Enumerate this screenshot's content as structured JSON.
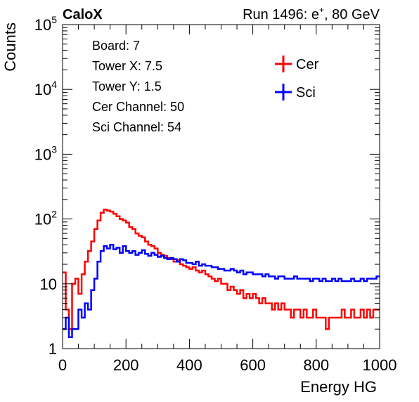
{
  "chart_data": {
    "type": "histogram",
    "corner_label": "CaloX",
    "run_label": "Run 1496: e",
    "run_label_sup": "+",
    "run_label_rest": ", 80 GeV",
    "xlabel": "Energy HG",
    "ylabel": "Counts",
    "xlim": [
      0,
      1000
    ],
    "ylim": [
      1,
      100000
    ],
    "y_scale": "log",
    "x_ticks": [
      {
        "value": 0,
        "label": "0"
      },
      {
        "value": 200,
        "label": "200"
      },
      {
        "value": 400,
        "label": "400"
      },
      {
        "value": 600,
        "label": "600"
      },
      {
        "value": 800,
        "label": "800"
      },
      {
        "value": 1000,
        "label": "1000"
      }
    ],
    "y_ticks": [
      {
        "value": 1,
        "base": "1",
        "exp": ""
      },
      {
        "value": 10,
        "base": "10",
        "exp": ""
      },
      {
        "value": 100,
        "base": "10",
        "exp": "2"
      },
      {
        "value": 1000,
        "base": "10",
        "exp": "3"
      },
      {
        "value": 10000,
        "base": "10",
        "exp": "4"
      },
      {
        "value": 100000,
        "base": "10",
        "exp": "5"
      }
    ],
    "info_lines": [
      "Board: 7",
      "Tower X: 7.5",
      "Tower Y: 1.5",
      "Cer Channel: 50",
      "Sci Channel: 54"
    ],
    "legend": {
      "placement": "top-right"
    },
    "series": [
      {
        "name": "Cer",
        "color": "#ff0000",
        "x": [
          5,
          15,
          25,
          35,
          45,
          55,
          65,
          75,
          85,
          95,
          105,
          115,
          125,
          135,
          145,
          155,
          165,
          175,
          185,
          195,
          205,
          215,
          225,
          235,
          245,
          255,
          265,
          275,
          285,
          295,
          305,
          315,
          325,
          335,
          345,
          355,
          365,
          375,
          385,
          395,
          405,
          415,
          425,
          435,
          445,
          455,
          465,
          475,
          485,
          495,
          505,
          515,
          525,
          535,
          545,
          555,
          565,
          575,
          585,
          595,
          605,
          615,
          625,
          635,
          645,
          655,
          665,
          675,
          685,
          695,
          705,
          715,
          725,
          735,
          745,
          755,
          765,
          775,
          785,
          795,
          805,
          815,
          825,
          835,
          845,
          855,
          865,
          875,
          885,
          895,
          905,
          915,
          925,
          935,
          945,
          955,
          965,
          975,
          985,
          995
        ],
        "values": [
          15,
          4,
          2,
          10,
          12,
          7,
          14,
          22,
          32,
          45,
          70,
          95,
          125,
          140,
          135,
          130,
          120,
          110,
          100,
          95,
          88,
          75,
          70,
          60,
          55,
          52,
          45,
          40,
          38,
          35,
          30,
          28,
          27,
          25,
          24,
          22,
          23,
          20,
          19,
          18,
          17,
          18,
          16,
          15,
          16,
          14,
          13,
          12,
          11,
          12,
          10,
          10,
          8,
          9,
          8,
          7,
          8,
          6,
          7,
          6,
          7,
          6,
          5,
          6,
          5,
          5,
          4,
          5,
          4,
          5,
          4,
          4,
          3,
          4,
          4,
          3,
          4,
          3,
          3,
          4,
          3,
          3,
          3,
          2,
          3,
          3,
          3,
          3,
          4,
          3,
          3,
          4,
          3,
          3,
          4,
          3,
          4,
          3,
          4,
          4
        ]
      },
      {
        "name": "Sci",
        "color": "#0000ff",
        "x": [
          5,
          15,
          25,
          35,
          45,
          55,
          65,
          75,
          85,
          95,
          105,
          115,
          125,
          135,
          145,
          155,
          165,
          175,
          185,
          195,
          205,
          215,
          225,
          235,
          245,
          255,
          265,
          275,
          285,
          295,
          305,
          315,
          325,
          335,
          345,
          355,
          365,
          375,
          385,
          395,
          405,
          415,
          425,
          435,
          445,
          455,
          465,
          475,
          485,
          495,
          505,
          515,
          525,
          535,
          545,
          555,
          565,
          575,
          585,
          595,
          605,
          615,
          625,
          635,
          645,
          655,
          665,
          675,
          685,
          695,
          705,
          715,
          725,
          735,
          745,
          755,
          765,
          775,
          785,
          795,
          805,
          815,
          825,
          835,
          845,
          855,
          865,
          875,
          885,
          895,
          905,
          915,
          925,
          935,
          945,
          955,
          965,
          975,
          985,
          995
        ],
        "values": [
          2,
          3,
          1.5,
          2,
          2,
          4,
          3,
          5,
          4,
          8,
          12,
          22,
          32,
          38,
          35,
          40,
          34,
          36,
          30,
          38,
          32,
          30,
          32,
          28,
          30,
          33,
          29,
          27,
          30,
          28,
          26,
          27,
          25,
          24,
          25,
          24,
          22,
          24,
          23,
          21,
          21,
          20,
          22,
          19,
          20,
          19,
          19,
          18,
          18,
          17,
          17,
          16,
          16,
          17,
          16,
          15,
          16,
          14,
          15,
          15,
          14,
          14,
          14,
          13,
          14,
          13,
          13,
          12,
          13,
          13,
          12,
          12,
          12,
          13,
          12,
          12,
          12,
          12,
          11,
          12,
          12,
          11,
          12,
          11,
          11,
          12,
          11,
          12,
          11,
          11,
          11,
          12,
          11,
          11,
          12,
          11,
          12,
          12,
          12,
          13
        ]
      }
    ]
  }
}
